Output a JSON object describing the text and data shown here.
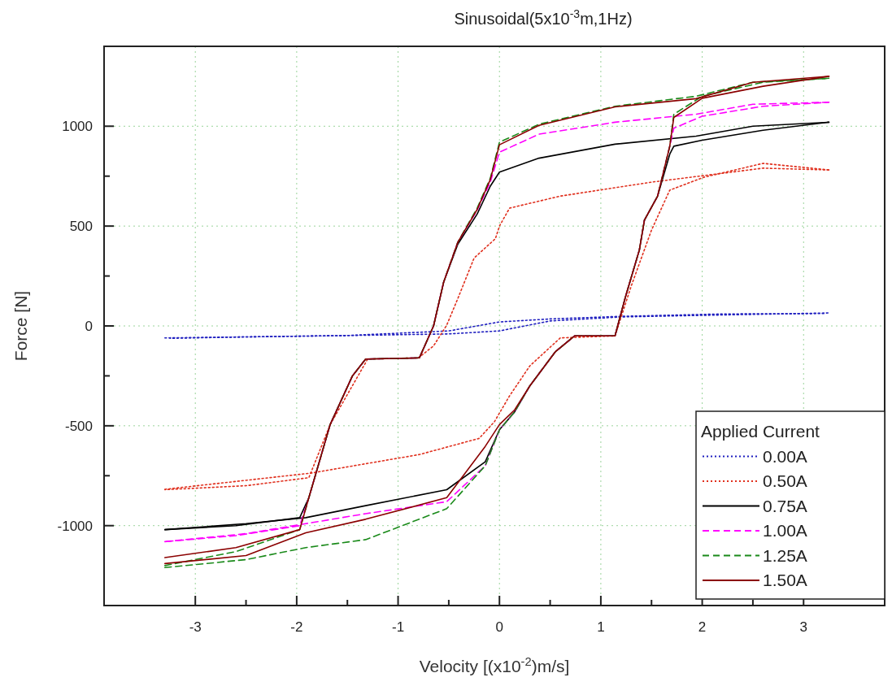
{
  "chart_data": {
    "type": "line",
    "title": "Sinusoidal(5x10$^{-3}$m,1Hz)",
    "xlabel": "Velocity [(x10$^{-2}$)m/s]",
    "ylabel": "Force [N]",
    "legend_title": "Applied Current",
    "legend": "bottom right",
    "grid": true,
    "xlim": [
      -3.9,
      3.8
    ],
    "xticks": [
      -3,
      -2,
      -1,
      0,
      1,
      2,
      3
    ],
    "ylim": [
      -1400,
      1400
    ],
    "yticks": [
      -1000,
      -500,
      0,
      500,
      1000
    ],
    "series": [
      {
        "name": "0.00A",
        "color": "#2020c0",
        "line_style": "dotted",
        "x": [
          -3.3,
          -2.5,
          -1.5,
          -0.5,
          0,
          0.5,
          1.2,
          2.2,
          3.25
        ],
        "values": [
          -60,
          -55,
          -48,
          -40,
          -25,
          25,
          45,
          55,
          65
        ]
      },
      {
        "color": "#2020c0",
        "line_style": "dotted",
        "x": [
          3.2,
          2.2,
          1.2,
          0.5,
          0,
          -0.5,
          -1.5,
          -2.5,
          -3.25
        ],
        "values": [
          62,
          60,
          48,
          35,
          20,
          -25,
          -48,
          -55,
          -62
        ]
      },
      {
        "name": "0.50A",
        "color": "#e0301e",
        "line_style": "dotted",
        "x": [
          -3.3,
          -1.86,
          -0.79,
          -0.2,
          -0.05,
          0.1,
          0.3,
          0.6,
          1.14,
          1.3,
          1.5,
          1.68,
          2.02,
          2.6,
          3.25
        ],
        "values": [
          -818,
          -737,
          -644,
          -563,
          -480,
          -350,
          -200,
          -60,
          -50,
          200,
          480,
          680,
          745,
          814,
          781
        ]
      },
      {
        "color": "#e0301e",
        "line_style": "dotted",
        "x": [
          3.25,
          2.6,
          1.5,
          0.6,
          0.1,
          0.0,
          -0.04,
          -0.25,
          -0.41,
          -0.52,
          -0.65,
          -0.8,
          -1.3,
          -1.67,
          -1.88,
          -2.5,
          -3.3
        ],
        "values": [
          781,
          790,
          720,
          650,
          590,
          500,
          437,
          340,
          138,
          4,
          -100,
          -160,
          -166,
          -494,
          -760,
          -800,
          -820
        ]
      },
      {
        "name": "0.75A",
        "color": "#000000",
        "line_style": "solid",
        "x": [
          -3.3,
          -2.5,
          -1.91,
          -1.32,
          -0.52,
          -0.14,
          0.0,
          0.15,
          0.3,
          0.55,
          0.74,
          1.14,
          1.24,
          1.38,
          1.43,
          1.56,
          1.68,
          1.72,
          2.0,
          2.6,
          3.25
        ],
        "values": [
          -1020,
          -990,
          -960,
          -900,
          -820,
          -680,
          -520,
          -430,
          -300,
          -130,
          -50,
          -50,
          140,
          380,
          530,
          650,
          860,
          900,
          930,
          980,
          1020
        ]
      },
      {
        "color": "#000000",
        "line_style": "solid",
        "x": [
          3.25,
          2.5,
          1.94,
          1.14,
          0.39,
          0.0,
          -0.09,
          -0.22,
          -0.41,
          -0.55,
          -0.65,
          -0.79,
          -1.32,
          -1.45,
          -1.67,
          -1.88,
          -1.97,
          -2.6,
          -3.3
        ],
        "values": [
          1020,
          1000,
          950,
          910,
          840,
          770,
          700,
          560,
          410,
          220,
          0,
          -160,
          -166,
          -250,
          -494,
          -860,
          -960,
          -1000,
          -1020
        ]
      },
      {
        "name": "1.00A",
        "color": "#ff00ff",
        "line_style": "dashed",
        "x": [
          -3.3,
          -2.5,
          -1.91,
          -1.32,
          -0.52,
          -0.14,
          0.0,
          0.15,
          0.3,
          0.55,
          0.74,
          1.14,
          1.24,
          1.38,
          1.43,
          1.56,
          1.68,
          1.72,
          2.0,
          2.6,
          3.25
        ],
        "values": [
          -1080,
          -1040,
          -990,
          -940,
          -880,
          -700,
          -520,
          -430,
          -300,
          -130,
          -50,
          -50,
          140,
          380,
          530,
          650,
          900,
          990,
          1050,
          1100,
          1120
        ]
      },
      {
        "color": "#ff00ff",
        "line_style": "dashed",
        "x": [
          3.25,
          2.5,
          1.94,
          1.14,
          0.39,
          0.0,
          -0.09,
          -0.22,
          -0.41,
          -0.55,
          -0.65,
          -0.79,
          -1.32,
          -1.45,
          -1.67,
          -1.88,
          -1.97,
          -2.6,
          -3.3
        ],
        "values": [
          1120,
          1110,
          1060,
          1020,
          960,
          870,
          720,
          580,
          420,
          220,
          0,
          -160,
          -166,
          -250,
          -494,
          -860,
          -1000,
          -1050,
          -1080
        ]
      },
      {
        "name": "1.25A",
        "color": "#1a8a1a",
        "line_style": "dashed",
        "x": [
          -3.3,
          -2.5,
          -1.91,
          -1.32,
          -0.52,
          -0.14,
          0.0,
          0.15,
          0.3,
          0.55,
          0.74,
          1.14,
          1.24,
          1.38,
          1.43,
          1.56,
          1.68,
          1.72,
          2.0,
          2.6,
          3.25
        ],
        "values": [
          -1210,
          -1170,
          -1110,
          -1070,
          -915,
          -700,
          -520,
          -430,
          -300,
          -130,
          -50,
          -50,
          140,
          380,
          530,
          650,
          900,
          1060,
          1150,
          1220,
          1240
        ]
      },
      {
        "color": "#1a8a1a",
        "line_style": "dashed",
        "x": [
          3.25,
          2.5,
          1.94,
          1.14,
          0.39,
          0.0,
          -0.09,
          -0.22,
          -0.41,
          -0.55,
          -0.65,
          -0.79,
          -1.32,
          -1.45,
          -1.67,
          -1.88,
          -1.97,
          -2.6,
          -3.3
        ],
        "values": [
          1240,
          1220,
          1150,
          1100,
          1010,
          920,
          740,
          590,
          420,
          220,
          0,
          -160,
          -166,
          -250,
          -494,
          -860,
          -1020,
          -1130,
          -1200
        ]
      },
      {
        "name": "1.50A",
        "color": "#8b0000",
        "line_style": "solid",
        "x": [
          -3.3,
          -2.5,
          -1.91,
          -1.32,
          -0.52,
          -0.14,
          0.0,
          0.15,
          0.3,
          0.55,
          0.74,
          1.14,
          1.24,
          1.38,
          1.43,
          1.56,
          1.68,
          1.72,
          2.0,
          2.6,
          3.25
        ],
        "values": [
          -1190,
          -1150,
          -1036,
          -968,
          -860,
          -603,
          -494,
          -420,
          -300,
          -130,
          -50,
          -50,
          140,
          380,
          530,
          650,
          900,
          1044,
          1140,
          1200,
          1250
        ]
      },
      {
        "color": "#8b0000",
        "line_style": "solid",
        "x": [
          3.25,
          2.5,
          1.94,
          1.14,
          0.39,
          0.0,
          -0.09,
          -0.22,
          -0.41,
          -0.55,
          -0.65,
          -0.79,
          -1.32,
          -1.45,
          -1.67,
          -1.88,
          -1.97,
          -2.6,
          -3.3
        ],
        "values": [
          1250,
          1220,
          1138,
          1097,
          1004,
          907,
          733,
          583,
          420,
          220,
          0,
          -160,
          -166,
          -250,
          -494,
          -860,
          -1020,
          -1110,
          -1160
        ]
      }
    ]
  }
}
